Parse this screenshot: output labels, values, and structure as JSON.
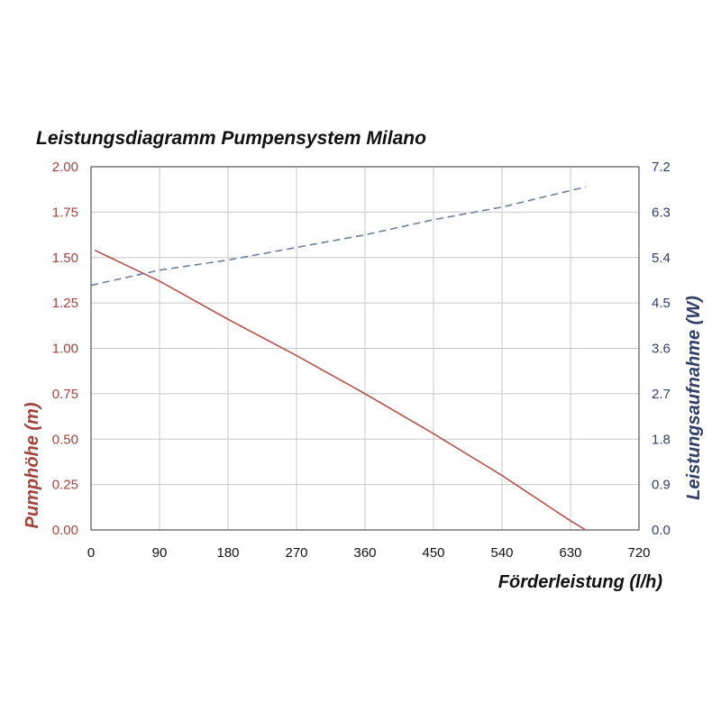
{
  "chart_data": {
    "type": "line",
    "title": "Leistungsdiagramm Pumpensystem Milano",
    "xlabel": "Förderleistung (l/h)",
    "ylabel_left": "Pumphöhe (m)",
    "ylabel_right": "Leistungsaufnahme (W)",
    "xlim": [
      0,
      720
    ],
    "ylim_left": [
      0,
      2.0
    ],
    "ylim_right": [
      0,
      7.2
    ],
    "x_ticks": [
      "0",
      "90",
      "180",
      "270",
      "360",
      "450",
      "540",
      "630",
      "720"
    ],
    "y_left_ticks": [
      "0.00",
      "0.25",
      "0.50",
      "0.75",
      "1.00",
      "1.25",
      "1.50",
      "1.75",
      "2.00"
    ],
    "y_right_ticks": [
      "0.0",
      "0.9",
      "1.8",
      "2.7",
      "3.6",
      "4.5",
      "5.4",
      "6.3",
      "7.2"
    ],
    "grid": true,
    "series": [
      {
        "name": "Pumphöhe (m)",
        "axis": "left",
        "style": "solid",
        "color": "#b5534c",
        "x": [
          5,
          90,
          180,
          270,
          360,
          450,
          540,
          630,
          650
        ],
        "y": [
          1.54,
          1.37,
          1.16,
          0.96,
          0.75,
          0.53,
          0.3,
          0.05,
          0.0
        ]
      },
      {
        "name": "Leistungsaufnahme (W)",
        "axis": "right",
        "style": "dashed",
        "color": "#6e7f99",
        "x": [
          0,
          90,
          180,
          270,
          360,
          450,
          540,
          650
        ],
        "y": [
          4.85,
          5.15,
          5.35,
          5.6,
          5.85,
          6.15,
          6.4,
          6.8
        ]
      }
    ]
  },
  "colors": {
    "left_axis": "#a5433d",
    "right_axis": "#2f3e6b",
    "grid": "#c8c8c8",
    "frame": "#555555"
  }
}
